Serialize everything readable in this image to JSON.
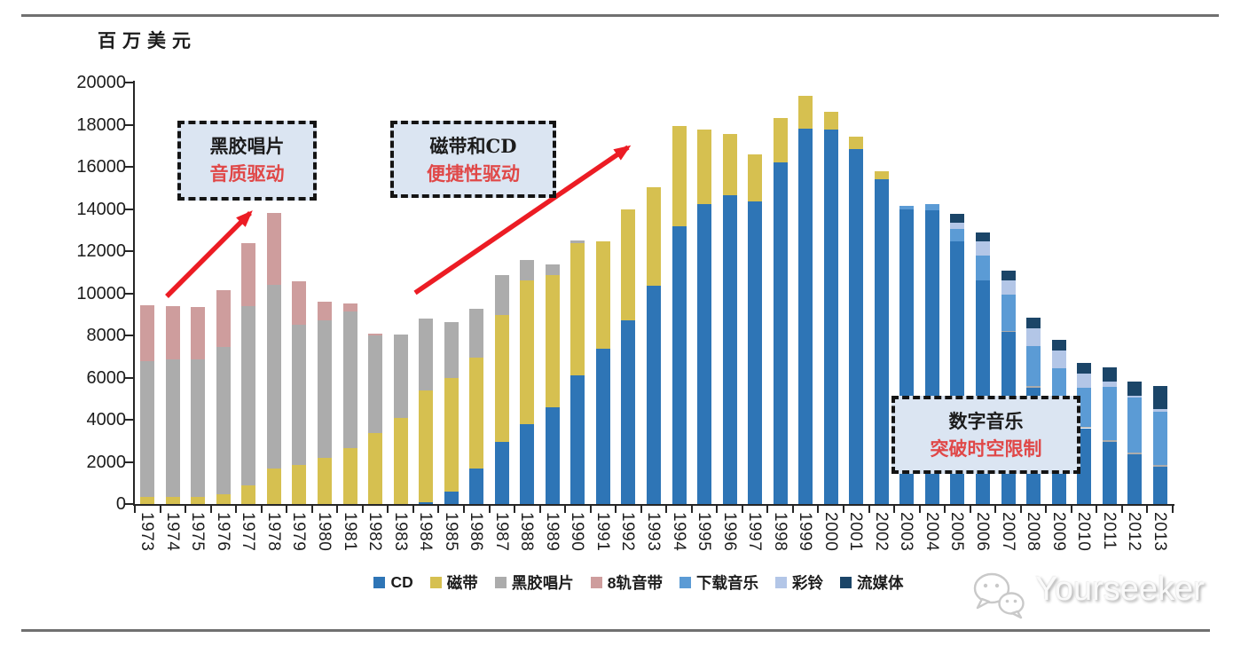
{
  "page": {
    "unit_label": "百万美元"
  },
  "colors": {
    "arrow_red": "#EC1C24",
    "annotation_bg": "#DBE5F2",
    "annotation_text_red": "#E04848",
    "annotation_text_black": "#141414",
    "rule_gray": "#707070"
  },
  "annotations": [
    {
      "line1": "黑胶唱片",
      "line2": "音质驱动"
    },
    {
      "line1": "磁带和CD",
      "line2": "便捷性驱动"
    },
    {
      "line1": "数字音乐",
      "line2": "突破时空限制"
    }
  ],
  "watermark": {
    "text": "Yourseeker",
    "icon": "wechat-bubbles-icon"
  },
  "chart_data": {
    "type": "bar",
    "stacked": true,
    "title": "",
    "xlabel": "",
    "ylabel": "百万美元",
    "ylim": [
      0,
      20000
    ],
    "ytick_step": 2000,
    "grid": false,
    "legend_position": "bottom",
    "categories": [
      1973,
      1974,
      1975,
      1976,
      1977,
      1978,
      1979,
      1980,
      1981,
      1982,
      1983,
      1984,
      1985,
      1986,
      1987,
      1988,
      1989,
      1990,
      1991,
      1992,
      1993,
      1994,
      1995,
      1996,
      1997,
      1998,
      1999,
      2000,
      2001,
      2002,
      2003,
      2004,
      2005,
      2006,
      2007,
      2008,
      2009,
      2010,
      2011,
      2012,
      2013
    ],
    "series": [
      {
        "name": "CD",
        "color": "#2E75B6",
        "values": [
          0,
          0,
          0,
          0,
          0,
          0,
          0,
          0,
          0,
          0,
          0,
          100,
          600,
          1700,
          2950,
          3800,
          4600,
          6100,
          7350,
          8700,
          10350,
          13200,
          14250,
          14650,
          14350,
          16200,
          17800,
          17750,
          16850,
          15400,
          14000,
          13950,
          12450,
          10600,
          8150,
          5500,
          4300,
          3600,
          2950,
          2350,
          1750
        ]
      },
      {
        "name": "磁带",
        "color": "#D6C050",
        "values": [
          350,
          350,
          350,
          450,
          900,
          1700,
          1850,
          2200,
          2650,
          3350,
          4100,
          5300,
          5400,
          5250,
          6000,
          6800,
          6250,
          6300,
          5100,
          5300,
          4700,
          4750,
          3500,
          2900,
          2250,
          2100,
          1550,
          850,
          600,
          400,
          0,
          0,
          0,
          0,
          0,
          0,
          0,
          0,
          0,
          0,
          0
        ]
      },
      {
        "name": "黑胶唱片",
        "color": "#ACACAC",
        "values": [
          6450,
          6500,
          6500,
          7000,
          8500,
          8700,
          6650,
          6500,
          6500,
          4650,
          3950,
          3400,
          2650,
          2300,
          1900,
          1000,
          500,
          100,
          0,
          0,
          0,
          0,
          0,
          0,
          0,
          0,
          0,
          0,
          0,
          0,
          0,
          0,
          0,
          0,
          80,
          80,
          80,
          80,
          100,
          100,
          100
        ]
      },
      {
        "name": "8轨音带",
        "color": "#CE9D9D",
        "values": [
          2650,
          2550,
          2500,
          2700,
          3000,
          3400,
          2050,
          900,
          350,
          100,
          0,
          0,
          0,
          0,
          0,
          0,
          0,
          0,
          0,
          0,
          0,
          0,
          0,
          0,
          0,
          0,
          0,
          0,
          0,
          0,
          0,
          0,
          0,
          0,
          0,
          0,
          0,
          0,
          0,
          0,
          0
        ]
      },
      {
        "name": "下载音乐",
        "color": "#5B9BD5",
        "values": [
          0,
          0,
          0,
          0,
          0,
          0,
          0,
          0,
          0,
          0,
          0,
          0,
          0,
          0,
          0,
          0,
          0,
          0,
          0,
          0,
          0,
          0,
          0,
          0,
          0,
          0,
          0,
          0,
          0,
          0,
          150,
          300,
          600,
          1200,
          1700,
          1900,
          2050,
          1850,
          2500,
          2600,
          2550
        ]
      },
      {
        "name": "彩铃",
        "color": "#B3C6E7",
        "values": [
          0,
          0,
          0,
          0,
          0,
          0,
          0,
          0,
          0,
          0,
          0,
          0,
          0,
          0,
          0,
          0,
          0,
          0,
          0,
          0,
          0,
          0,
          0,
          0,
          0,
          0,
          0,
          0,
          0,
          0,
          0,
          0,
          300,
          650,
          670,
          850,
          850,
          650,
          250,
          100,
          100
        ]
      },
      {
        "name": "流媒体",
        "color": "#1B4568",
        "values": [
          0,
          0,
          0,
          0,
          0,
          0,
          0,
          0,
          0,
          0,
          0,
          0,
          0,
          0,
          0,
          0,
          0,
          0,
          0,
          0,
          0,
          0,
          0,
          0,
          0,
          0,
          0,
          0,
          0,
          0,
          0,
          0,
          400,
          450,
          470,
          500,
          500,
          500,
          700,
          650,
          1100
        ]
      }
    ]
  }
}
